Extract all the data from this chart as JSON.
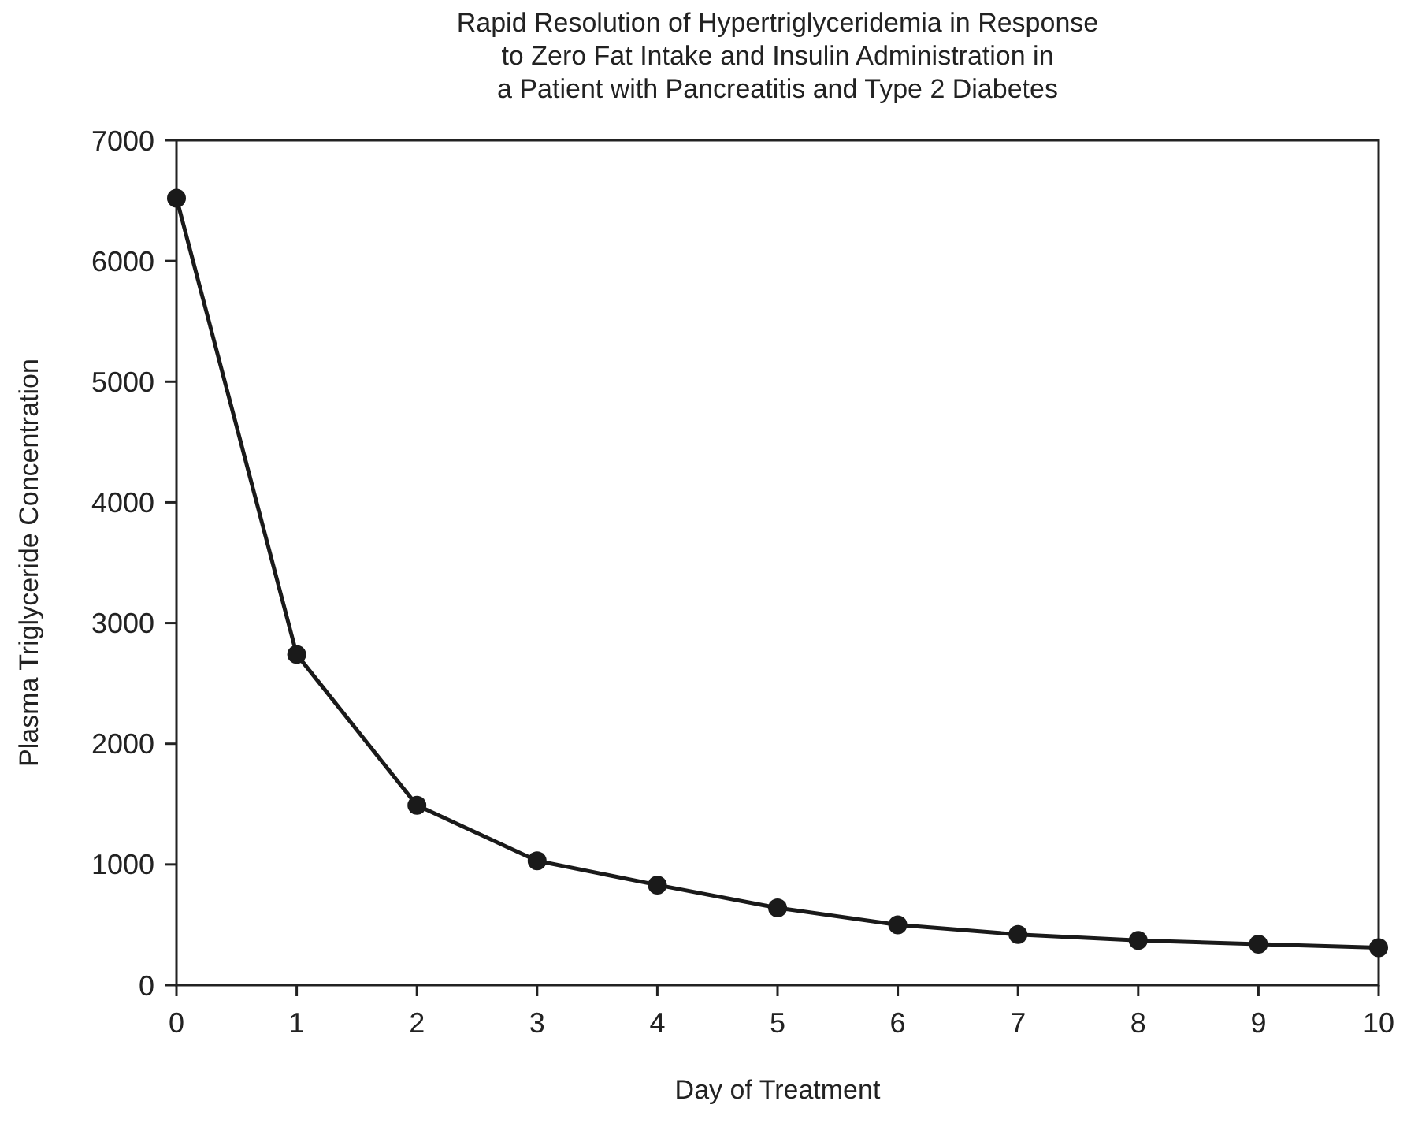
{
  "chart_data": {
    "type": "line",
    "title": "Rapid Resolution of Hypertriglyceridemia in Response\nto Zero Fat Intake and Insulin Administration in\na Patient with Pancreatitis and Type 2 Diabetes",
    "xlabel": "Day of Treatment",
    "ylabel": "Plasma Triglyceride Concentration",
    "x": [
      0,
      1,
      2,
      3,
      4,
      5,
      6,
      7,
      8,
      9,
      10
    ],
    "series": [
      {
        "color": "#1a1a1a",
        "values": [
          6520,
          2740,
          1490,
          1030,
          830,
          640,
          500,
          420,
          370,
          340,
          310
        ]
      }
    ],
    "xlim": [
      0,
      10
    ],
    "xticks": [
      0,
      1,
      2,
      3,
      4,
      5,
      6,
      7,
      8,
      9,
      10
    ],
    "ylim": [
      0,
      7000
    ],
    "yticks": [
      0,
      1000,
      2000,
      3000,
      4000,
      5000,
      6000,
      7000
    ],
    "grid": false,
    "marker": "circle",
    "line_style": "solid"
  }
}
